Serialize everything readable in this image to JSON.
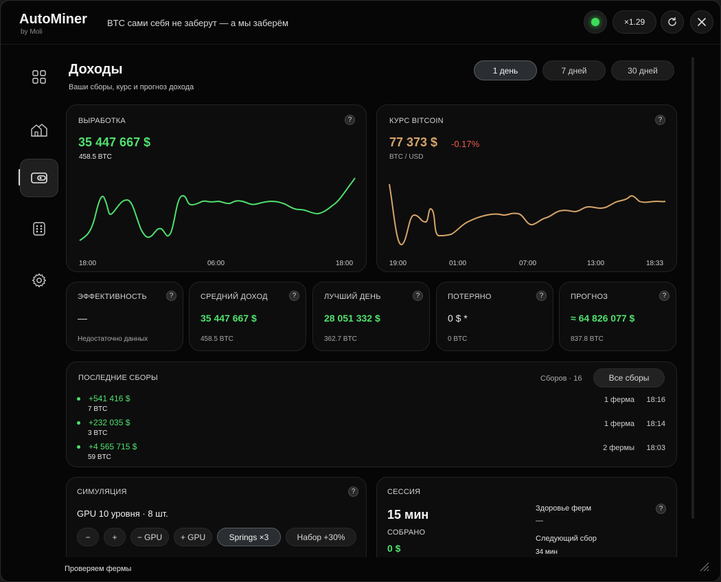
{
  "app": {
    "title": "AutoMiner",
    "subtitle": "by Moli",
    "tagline": "BTC сами себя не заберут — а мы заберём",
    "multiplier": "×1.29"
  },
  "sidebar": {
    "items": [
      {
        "icon": "grid-icon"
      },
      {
        "icon": "home-icon"
      },
      {
        "icon": "wallet-icon",
        "active": true
      },
      {
        "icon": "dice-icon"
      },
      {
        "icon": "gear-icon"
      }
    ]
  },
  "header": {
    "title": "Доходы",
    "subtitle": "Ваши сборы, курс и прогноз дохода",
    "ranges": [
      "1 день",
      "7 дней",
      "30 дней"
    ],
    "active_range": "1 день"
  },
  "output_card": {
    "label": "ВЫРАБОТКА",
    "value": "35 447 667 $",
    "btc": "458.5 BTC",
    "ticks": [
      "18:00",
      "06:00",
      "18:00"
    ],
    "color": "#4fe06e"
  },
  "btc_card": {
    "label": "КУРС BITCOIN",
    "value": "77 373 $",
    "change": "-0.17%",
    "pair": "BTC / USD",
    "ticks": [
      "19:00",
      "01:00",
      "07:00",
      "13:00",
      "18:33"
    ],
    "color": "#d6a46a"
  },
  "stats": [
    {
      "label": "ЭФФЕКТИВНОСТЬ",
      "value": "—",
      "sub": "Недостаточно данных",
      "tone": "plain"
    },
    {
      "label": "СРЕДНИЙ ДОХОД",
      "value": "35 447 667 $",
      "sub": "458.5 BTC",
      "tone": "green"
    },
    {
      "label": "ЛУЧШИЙ ДЕНЬ",
      "value": "28 051 332 $",
      "sub": "362.7 BTC",
      "tone": "green"
    },
    {
      "label": "ПОТЕРЯНО",
      "value": "0 $ *",
      "sub": "0 BTC",
      "tone": "plain"
    },
    {
      "label": "ПРОГНОЗ",
      "value": "≈ 64 826 077 $",
      "sub": "837.8 BTC",
      "tone": "green"
    }
  ],
  "payouts": {
    "label": "ПОСЛЕДНИЕ СБОРЫ",
    "count_text": "Сборов · 16",
    "all_button": "Все сборы",
    "rows": [
      {
        "amount": "+541 416 $",
        "btc": "7 BTC",
        "farms": "1 ферма",
        "time": "18:16"
      },
      {
        "amount": "+232 035 $",
        "btc": "3 BTC",
        "farms": "1 ферма",
        "time": "18:14"
      },
      {
        "amount": "+4 565 715 $",
        "btc": "59 BTC",
        "farms": "2 фермы",
        "time": "18:03"
      }
    ]
  },
  "simulation": {
    "label": "СИМУЛЯЦИЯ",
    "config": "GPU 10 уровня · 8 шт.",
    "buttons": [
      "−",
      "+",
      "− GPU",
      "+ GPU",
      "Springs ×3",
      "Набор +30%"
    ],
    "active_button": "Springs ×3"
  },
  "session": {
    "label": "СЕССИЯ",
    "duration": "15 мин",
    "collected_label": "СОБРАНО",
    "collected_value": "0 $",
    "health_label": "Здоровье ферм",
    "health_value": "—",
    "next_label": "Следующий сбор",
    "next_value": "34 мин"
  },
  "footer": {
    "status": "Проверяем фермы"
  }
}
